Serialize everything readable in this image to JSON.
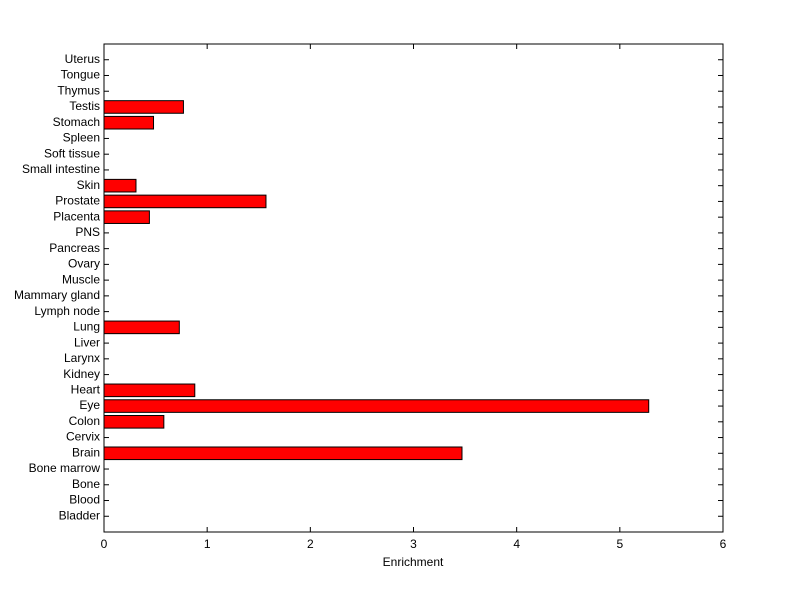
{
  "chart_data": {
    "type": "hbar",
    "xlabel": "Enrichment",
    "categories": [
      "Bladder",
      "Blood",
      "Bone",
      "Bone marrow",
      "Brain",
      "Cervix",
      "Colon",
      "Eye",
      "Heart",
      "Kidney",
      "Larynx",
      "Liver",
      "Lung",
      "Lymph node",
      "Mammary gland",
      "Muscle",
      "Ovary",
      "Pancreas",
      "PNS",
      "Placenta",
      "Prostate",
      "Skin",
      "Small intestine",
      "Soft tissue",
      "Spleen",
      "Stomach",
      "Testis",
      "Thymus",
      "Tongue",
      "Uterus"
    ],
    "values": [
      0,
      0,
      0,
      0,
      3.47,
      0,
      0.58,
      5.28,
      0.88,
      0,
      0,
      0,
      0.73,
      0,
      0,
      0,
      0,
      0,
      0,
      0.44,
      1.57,
      0.31,
      0,
      0,
      0,
      0.48,
      0.77,
      0,
      0,
      0
    ],
    "color": "#ff0000",
    "xlim": [
      0,
      6
    ],
    "xticks": [
      0,
      1,
      2,
      3,
      4,
      5,
      6
    ],
    "grid": false
  }
}
